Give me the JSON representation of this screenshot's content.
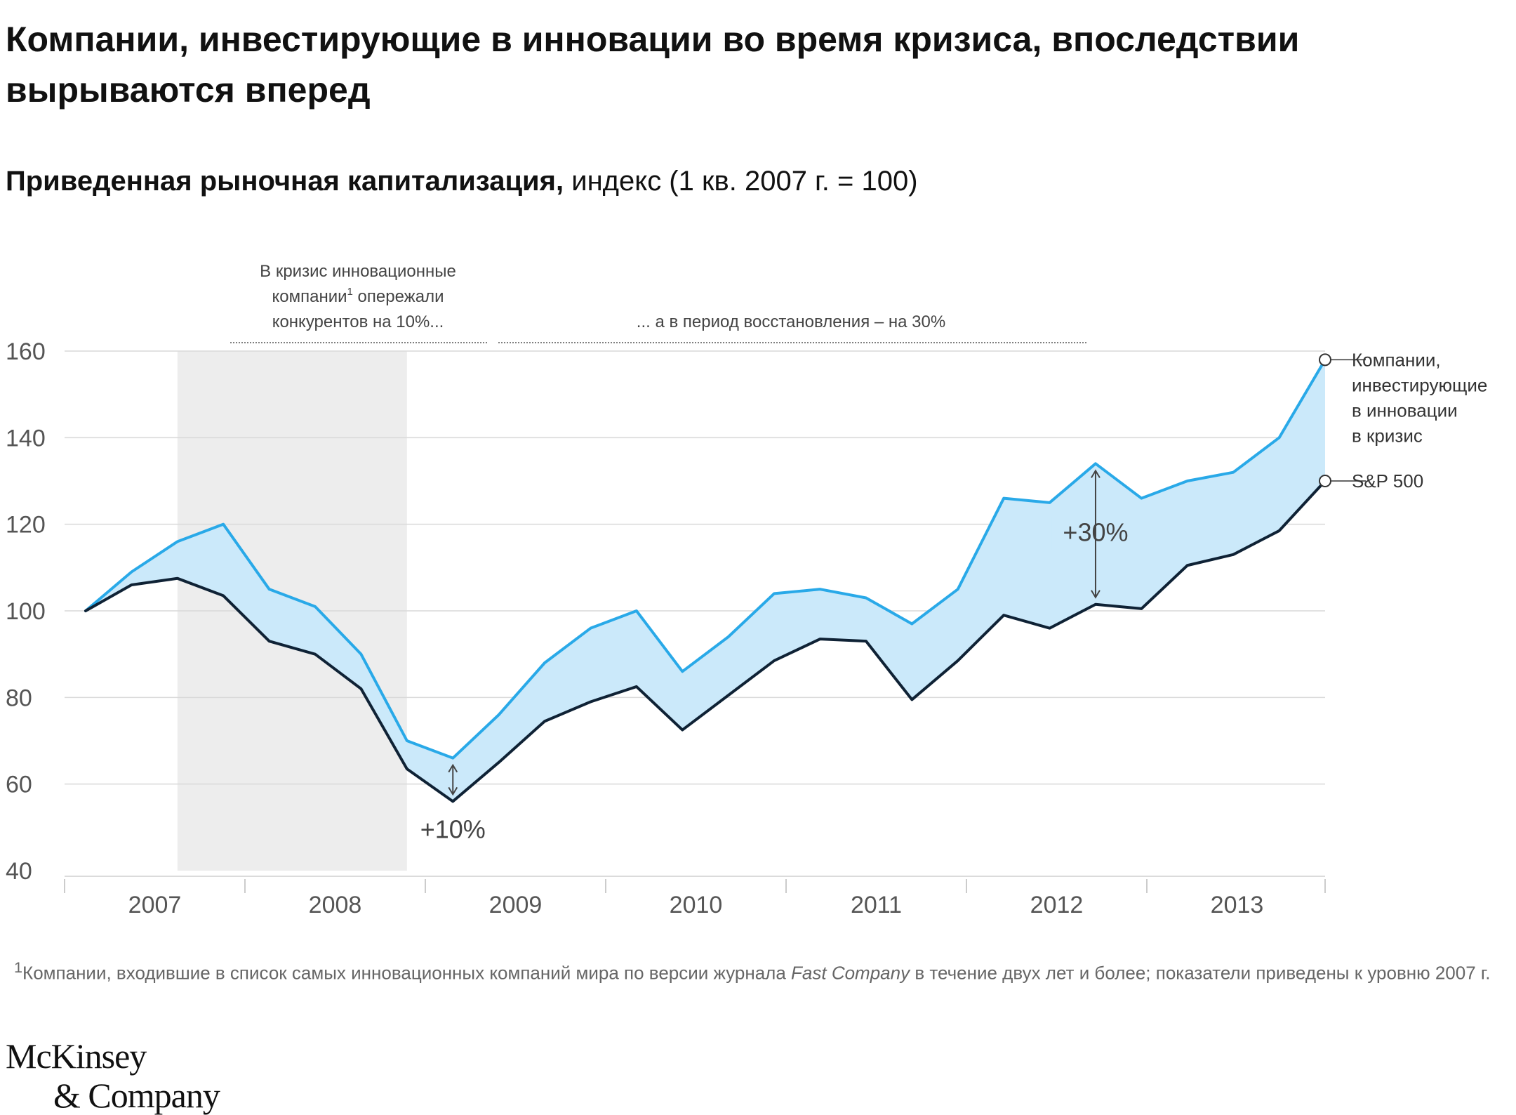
{
  "title": "Компании, инвестирующие в инновации во время кризиса, впоследствии вырываются вперед",
  "subtitle": {
    "bold": "Приведенная рыночная капитализация,",
    "rest": " индекс (1 кв. 2007 г. = 100)"
  },
  "chart_data": {
    "type": "line",
    "x_labels": [
      "2007",
      "2008",
      "2009",
      "2010",
      "2011",
      "2012",
      "2013"
    ],
    "x_quarter_ticks": [
      "1 кв. 2007",
      "2 кв. 2007",
      "3 кв. 2007",
      "4 кв. 2007",
      "1 кв. 2008",
      "2 кв. 2008",
      "3 кв. 2008",
      "4 кв. 2008",
      "1 кв. 2009",
      "2 кв. 2009",
      "3 кв. 2009",
      "4 кв. 2009",
      "1 кв. 2010",
      "2 кв. 2010",
      "3 кв. 2010",
      "4 кв. 2010",
      "1 кв. 2011",
      "2 кв. 2011",
      "3 кв. 2011",
      "4 кв. 2011",
      "1 кв. 2012",
      "2 кв. 2012",
      "3 кв. 2012",
      "4 кв. 2012",
      "1 кв. 2013",
      "2 кв. 2013",
      "3 кв. 2013",
      "4 кв. 2013"
    ],
    "ylim": [
      40,
      160
    ],
    "yticks": [
      40,
      60,
      80,
      100,
      120,
      140,
      160
    ],
    "grid": true,
    "shaded_region": {
      "from": "3 кв. 2007",
      "to": "4 кв. 2008"
    },
    "series": [
      {
        "name": "Компании, инвестирующие в инновации в кризис",
        "label_lines": [
          "Компании,",
          "инвестирующие",
          "в инновации",
          "в кризис"
        ],
        "color": "#29a9e8",
        "values": [
          100,
          109,
          116,
          120,
          105,
          101,
          90,
          70,
          66,
          76,
          88,
          96,
          100,
          86,
          94,
          104,
          105,
          103,
          97,
          105,
          126,
          125,
          134,
          126,
          130,
          132,
          140,
          158
        ]
      },
      {
        "name": "S&P 500",
        "label_lines": [
          "S&P 500"
        ],
        "color": "#0f2235",
        "values": [
          100,
          106,
          107.5,
          103.5,
          93,
          90,
          82,
          63.5,
          56,
          65,
          74.5,
          79,
          82.5,
          72.5,
          80.5,
          88.5,
          93.5,
          93,
          79.5,
          88.5,
          99,
          96,
          101.5,
          100.5,
          110.5,
          113,
          118.5,
          130
        ]
      }
    ],
    "annotations": {
      "crisis_text": [
        "В кризис инновационные",
        "компании",
        "1",
        " опережали",
        "конкурентов на 10%..."
      ],
      "recovery_text": "... а в период восстановления – на 30%",
      "gap_crisis": "+10%",
      "gap_recovery": "+30%"
    }
  },
  "footnote": {
    "sup": "1",
    "part1": "Компании, входившие в список самых инновационных компаний мира по версии журнала ",
    "italic": "Fast Company",
    "part2": " в течение двух лет и более; показатели приведены к уровню 2007 г."
  },
  "logo": {
    "line1": "McKinsey",
    "line2": "& Company"
  },
  "colors": {
    "innovators": "#29a9e8",
    "sp500": "#0f2235",
    "fill": "#cbe9fa",
    "shade": "#ededed",
    "grid": "#d9d9d9",
    "text_muted": "#555555"
  }
}
